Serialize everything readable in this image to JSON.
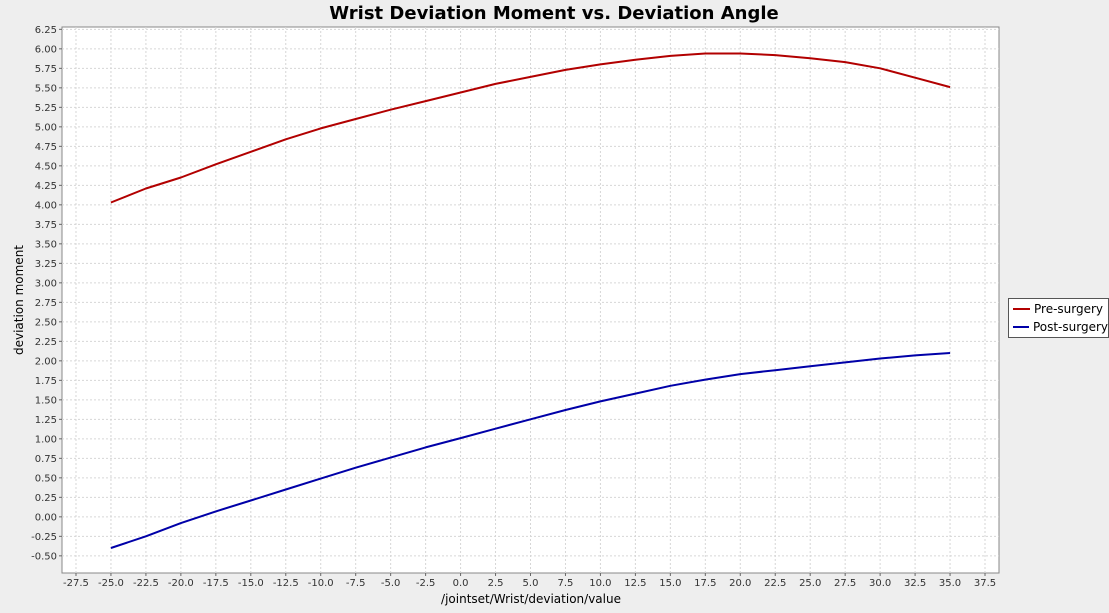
{
  "chart_data": {
    "type": "line",
    "title": "Wrist Deviation Moment vs. Deviation Angle",
    "xlabel": "/jointset/Wrist/deviation/value",
    "ylabel": "deviation moment",
    "xlim": [
      -28.5,
      38.5
    ],
    "ylim": [
      -0.72,
      6.28
    ],
    "x_ticks": [
      -27.5,
      -25.0,
      -22.5,
      -20.0,
      -17.5,
      -15.0,
      -12.5,
      -10.0,
      -7.5,
      -5.0,
      -2.5,
      0.0,
      2.5,
      5.0,
      7.5,
      10.0,
      12.5,
      15.0,
      17.5,
      20.0,
      22.5,
      25.0,
      27.5,
      30.0,
      32.5,
      35.0,
      37.5
    ],
    "y_ticks": [
      -0.5,
      -0.25,
      0.0,
      0.25,
      0.5,
      0.75,
      1.0,
      1.25,
      1.5,
      1.75,
      2.0,
      2.25,
      2.5,
      2.75,
      3.0,
      3.25,
      3.5,
      3.75,
      4.0,
      4.25,
      4.5,
      4.75,
      5.0,
      5.25,
      5.5,
      5.75,
      6.0,
      6.25
    ],
    "grid": true,
    "legend_position": "right",
    "series": [
      {
        "name": "Pre-surgery",
        "color": "#b20000",
        "x": [
          -25,
          -22.5,
          -20,
          -17.5,
          -15,
          -12.5,
          -10,
          -7.5,
          -5,
          -2.5,
          0,
          2.5,
          5,
          7.5,
          10,
          12.5,
          15,
          17.5,
          20,
          22.5,
          25,
          27.5,
          30,
          32.5,
          35
        ],
        "values": [
          4.03,
          4.21,
          4.35,
          4.52,
          4.68,
          4.84,
          4.98,
          5.1,
          5.22,
          5.33,
          5.44,
          5.55,
          5.64,
          5.73,
          5.8,
          5.86,
          5.91,
          5.94,
          5.94,
          5.92,
          5.88,
          5.83,
          5.75,
          5.63,
          5.51
        ]
      },
      {
        "name": "Post-surgery",
        "color": "#0000a8",
        "x": [
          -25,
          -22.5,
          -20,
          -17.5,
          -15,
          -12.5,
          -10,
          -7.5,
          -5,
          -2.5,
          0,
          2.5,
          5,
          7.5,
          10,
          12.5,
          15,
          17.5,
          20,
          22.5,
          25,
          27.5,
          30,
          32.5,
          35
        ],
        "values": [
          -0.4,
          -0.25,
          -0.08,
          0.07,
          0.21,
          0.35,
          0.49,
          0.63,
          0.76,
          0.89,
          1.01,
          1.13,
          1.25,
          1.37,
          1.48,
          1.58,
          1.68,
          1.76,
          1.83,
          1.88,
          1.93,
          1.98,
          2.03,
          2.07,
          2.1
        ]
      }
    ]
  }
}
